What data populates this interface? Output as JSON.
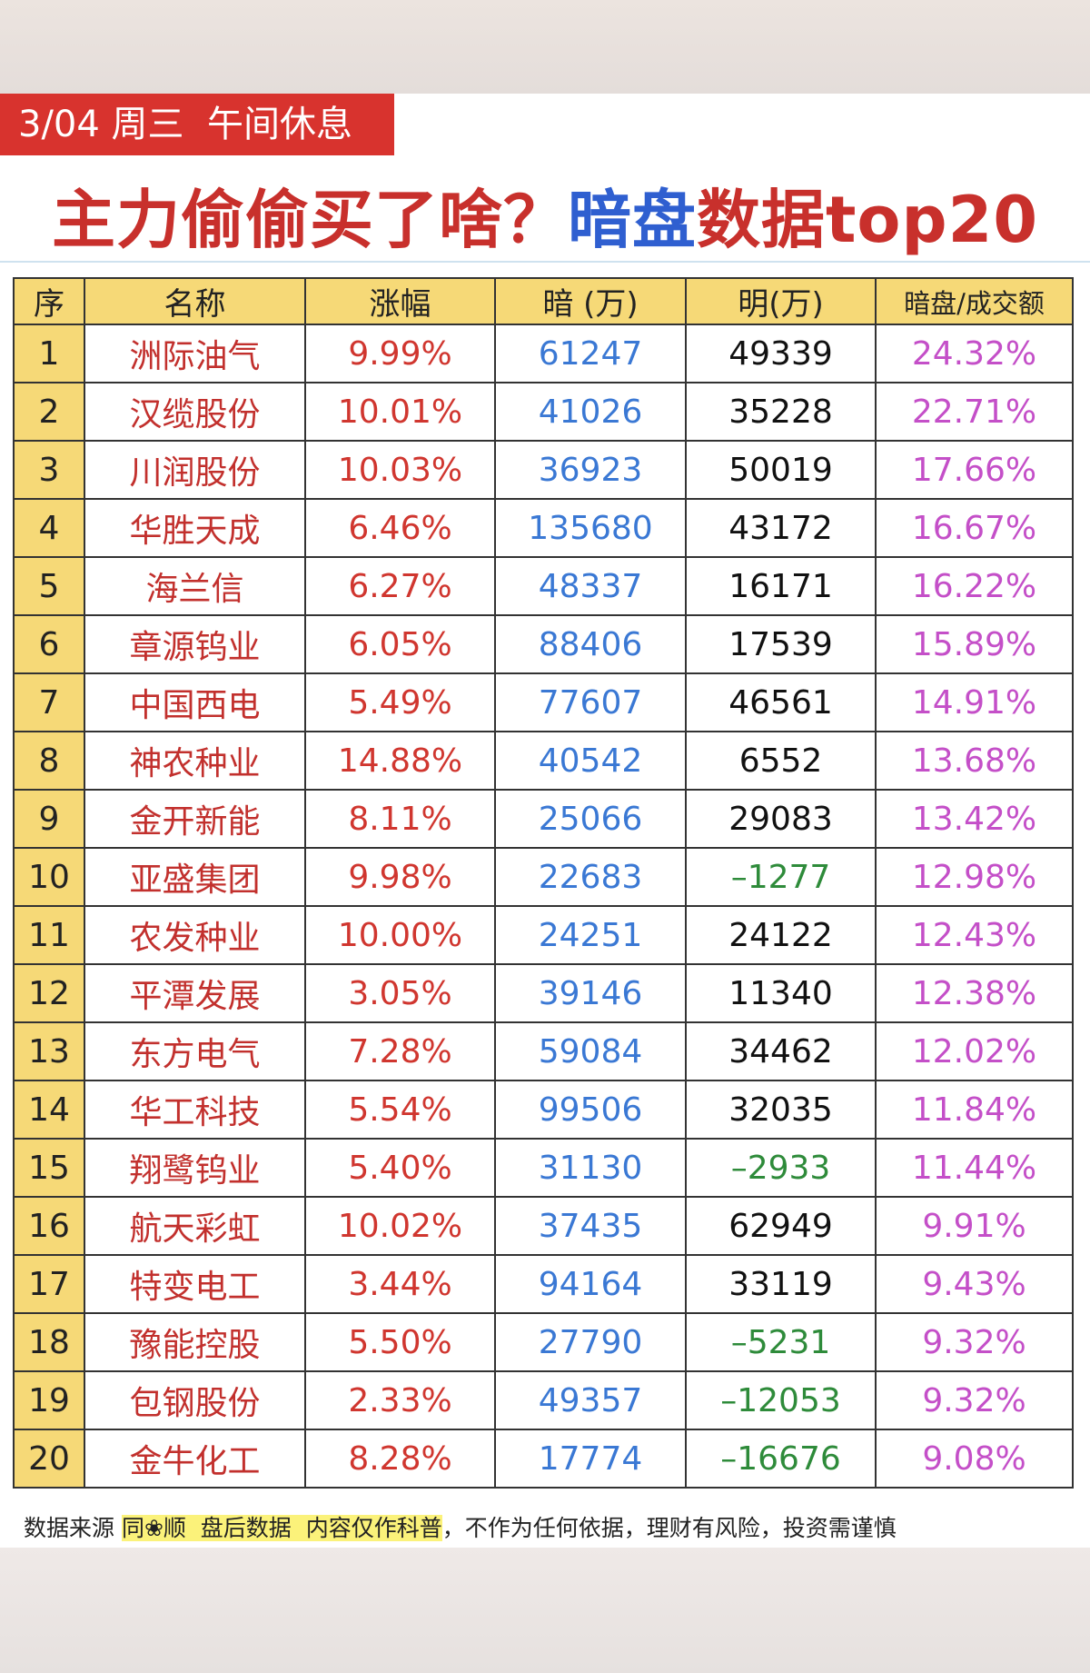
{
  "header": {
    "tag": "3/04 周三  午间休息",
    "title": [
      "主力偷偷买了啥？",
      "暗盘",
      "数据top20"
    ]
  },
  "table": {
    "columns": [
      "序",
      "名称",
      "涨幅",
      "暗 (万)",
      "明(万)",
      "暗盘/成交额"
    ],
    "rows": [
      [
        "1",
        "洲际油气",
        "9.99%",
        "61247",
        "49339",
        "24.32%"
      ],
      [
        "2",
        "汉缆股份",
        "10.01%",
        "41026",
        "35228",
        "22.71%"
      ],
      [
        "3",
        "川润股份",
        "10.03%",
        "36923",
        "50019",
        "17.66%"
      ],
      [
        "4",
        "华胜天成",
        "6.46%",
        "135680",
        "43172",
        "16.67%"
      ],
      [
        "5",
        "海兰信",
        "6.27%",
        "48337",
        "16171",
        "16.22%"
      ],
      [
        "6",
        "章源钨业",
        "6.05%",
        "88406",
        "17539",
        "15.89%"
      ],
      [
        "7",
        "中国西电",
        "5.49%",
        "77607",
        "46561",
        "14.91%"
      ],
      [
        "8",
        "神农种业",
        "14.88%",
        "40542",
        "6552",
        "13.68%"
      ],
      [
        "9",
        "金开新能",
        "8.11%",
        "25066",
        "29083",
        "13.42%"
      ],
      [
        "10",
        "亚盛集团",
        "9.98%",
        "22683",
        "–1277",
        "12.98%"
      ],
      [
        "11",
        "农发种业",
        "10.00%",
        "24251",
        "24122",
        "12.43%"
      ],
      [
        "12",
        "平潭发展",
        "3.05%",
        "39146",
        "11340",
        "12.38%"
      ],
      [
        "13",
        "东方电气",
        "7.28%",
        "59084",
        "34462",
        "12.02%"
      ],
      [
        "14",
        "华工科技",
        "5.54%",
        "99506",
        "32035",
        "11.84%"
      ],
      [
        "15",
        "翔鹭钨业",
        "5.40%",
        "31130",
        "–2933",
        "11.44%"
      ],
      [
        "16",
        "航天彩虹",
        "10.02%",
        "37435",
        "62949",
        "9.91%"
      ],
      [
        "17",
        "特变电工",
        "3.44%",
        "94164",
        "33119",
        "9.43%"
      ],
      [
        "18",
        "豫能控股",
        "5.50%",
        "27790",
        "–5231",
        "9.32%"
      ],
      [
        "19",
        "包钢股份",
        "2.33%",
        "49357",
        "–12053",
        "9.32%"
      ],
      [
        "20",
        "金牛化工",
        "8.28%",
        "17774",
        "–16676",
        "9.08%"
      ]
    ]
  },
  "footer": {
    "lead": "数据来源",
    "highlight": "同❀顺  盘后数据  内容仅作科普",
    "rest": "，不作为任何依据，理财有风险，投资需谨慎"
  }
}
